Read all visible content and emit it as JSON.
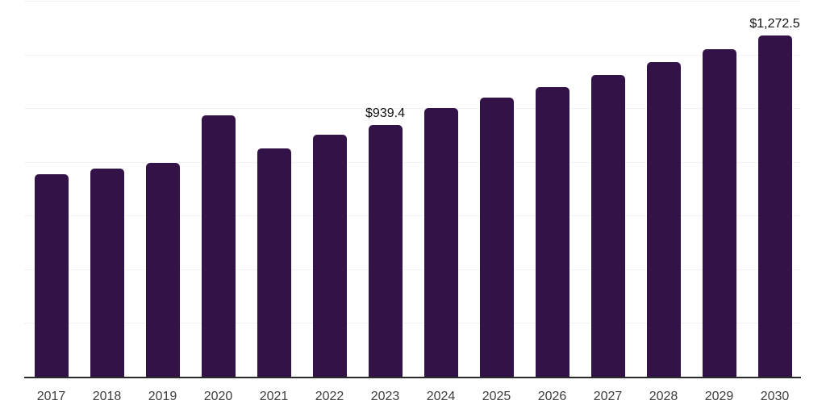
{
  "chart_data": {
    "type": "bar",
    "title": "",
    "xlabel": "",
    "ylabel": "",
    "categories": [
      "2017",
      "2018",
      "2019",
      "2020",
      "2021",
      "2022",
      "2023",
      "2024",
      "2025",
      "2026",
      "2027",
      "2028",
      "2029",
      "2030"
    ],
    "values": [
      756,
      777,
      798,
      976,
      853,
      903,
      939.4,
      1003,
      1042,
      1081,
      1126,
      1174,
      1222,
      1272.5
    ],
    "value_labels": [
      "",
      "",
      "",
      "",
      "",
      "",
      "$939.4",
      "",
      "",
      "",
      "",
      "",
      "",
      "$1,272.5"
    ],
    "ylim": [
      0,
      1400
    ],
    "ytick_interval": 200,
    "grid": true,
    "legend_position": "none",
    "colors": {
      "bar": "#331247",
      "axis_line": "#2a2a2a",
      "gridline": "#f2f2f2",
      "tick_label": "#3d3d3d",
      "value_label": "#111111"
    }
  }
}
